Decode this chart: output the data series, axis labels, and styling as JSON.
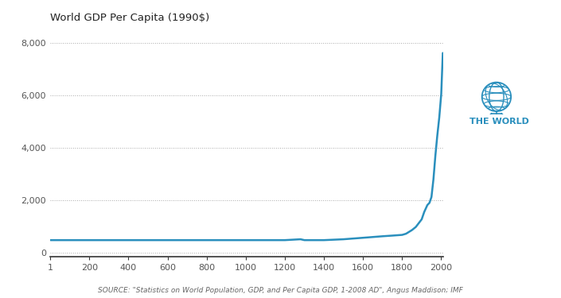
{
  "title": "World GDP Per Capita (1990$)",
  "source_text": "SOURCE: \"Statistics on World Population, GDP, and Per Capita GDP, 1-2008 AD\", Angus Maddison; IMF",
  "line_color": "#2a8fbd",
  "background_color": "#ffffff",
  "x_ticks": [
    1,
    200,
    400,
    600,
    800,
    1000,
    1200,
    1400,
    1600,
    1800,
    2000
  ],
  "y_ticks": [
    0,
    2000,
    4000,
    6000,
    8000
  ],
  "xlim": [
    1,
    2010
  ],
  "ylim": [
    -150,
    8500
  ],
  "label_world": "THE WORLD",
  "label_color": "#2a8fbd",
  "years": [
    1,
    200,
    400,
    600,
    730,
    800,
    1000,
    1100,
    1200,
    1280,
    1300,
    1400,
    1500,
    1600,
    1700,
    1750,
    1800,
    1820,
    1850,
    1870,
    1900,
    1913,
    1929,
    1940,
    1950,
    1960,
    1970,
    1980,
    1990,
    2000,
    2008
  ],
  "gdp_per_capita": [
    467,
    467,
    467,
    467,
    467,
    467,
    467,
    467,
    467,
    500,
    467,
    467,
    500,
    557,
    615,
    640,
    667,
    712,
    850,
    970,
    1262,
    1543,
    1806,
    1894,
    2114,
    2782,
    3693,
    4473,
    5157,
    6049,
    7614
  ],
  "grid_color": "#aaaaaa",
  "tick_color": "#555555",
  "spine_color": "#333333"
}
